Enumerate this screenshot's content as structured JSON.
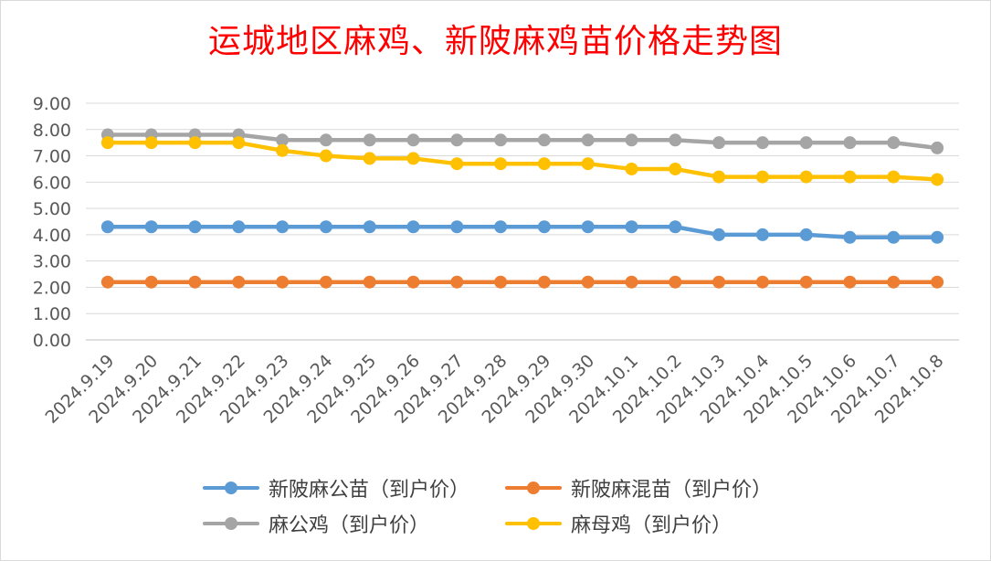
{
  "chart_data": {
    "type": "line",
    "title": "运城地区麻鸡、新陂麻鸡苗价格走势图",
    "xlabel": "",
    "ylabel": "",
    "ylim": [
      0,
      9
    ],
    "yticks": [
      "0.00",
      "1.00",
      "2.00",
      "3.00",
      "4.00",
      "5.00",
      "6.00",
      "7.00",
      "8.00",
      "9.00"
    ],
    "grid": true,
    "legend_position": "bottom",
    "categories": [
      "2024.9.19",
      "2024.9.20",
      "2024.9.21",
      "2024.9.22",
      "2024.9.23",
      "2024.9.24",
      "2024.9.25",
      "2024.9.26",
      "2024.9.27",
      "2024.9.28",
      "2024.9.29",
      "2024.9.30",
      "2024.10.1",
      "2024.10.2",
      "2024.10.3",
      "2024.10.4",
      "2024.10.5",
      "2024.10.6",
      "2024.10.7",
      "2024.10.8"
    ],
    "series": [
      {
        "name": "新陂麻公苗（到户价）",
        "color": "#5b9bd5",
        "values": [
          4.3,
          4.3,
          4.3,
          4.3,
          4.3,
          4.3,
          4.3,
          4.3,
          4.3,
          4.3,
          4.3,
          4.3,
          4.3,
          4.3,
          4.0,
          4.0,
          4.0,
          3.9,
          3.9,
          3.9
        ]
      },
      {
        "name": "新陂麻混苗（到户价）",
        "color": "#ed7d31",
        "values": [
          2.2,
          2.2,
          2.2,
          2.2,
          2.2,
          2.2,
          2.2,
          2.2,
          2.2,
          2.2,
          2.2,
          2.2,
          2.2,
          2.2,
          2.2,
          2.2,
          2.2,
          2.2,
          2.2,
          2.2
        ]
      },
      {
        "name": "麻公鸡（到户价）",
        "color": "#a5a5a5",
        "values": [
          7.8,
          7.8,
          7.8,
          7.8,
          7.6,
          7.6,
          7.6,
          7.6,
          7.6,
          7.6,
          7.6,
          7.6,
          7.6,
          7.6,
          7.5,
          7.5,
          7.5,
          7.5,
          7.5,
          7.3
        ]
      },
      {
        "name": "麻母鸡（到户价）",
        "color": "#ffc000",
        "values": [
          7.5,
          7.5,
          7.5,
          7.5,
          7.2,
          7.0,
          6.9,
          6.9,
          6.7,
          6.7,
          6.7,
          6.7,
          6.5,
          6.5,
          6.2,
          6.2,
          6.2,
          6.2,
          6.2,
          6.1
        ]
      }
    ]
  }
}
